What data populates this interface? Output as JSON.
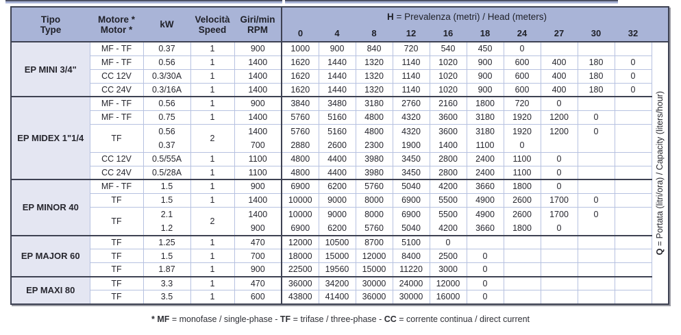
{
  "colors": {
    "header_blue": "#a9b4d7",
    "type_column_lavender": "#e4e6f2",
    "grid_light_blue": "#b6c1e0",
    "dark_border": "#3d4152"
  },
  "table": {
    "columns": {
      "tipo": [
        "Tipo",
        "Type"
      ],
      "motore": [
        "Motore *",
        "Motor *"
      ],
      "kw": "kW",
      "velocita": [
        "Velocità",
        "Speed"
      ],
      "giri": [
        "Giri/min",
        "RPM"
      ]
    },
    "head_group": {
      "symbol": "H",
      "label": " = Prevalenza (metri) / Head (meters)",
      "values": [
        "0",
        "4",
        "8",
        "12",
        "16",
        "18",
        "24",
        "27",
        "30",
        "32"
      ]
    },
    "side_label": {
      "symbol": "Q",
      "label": " = Portata (litri/ora) / Capacity (liters/hour)"
    },
    "sections": [
      {
        "name": "EP MINI 3/4\"",
        "rows": [
          {
            "motor": "MF - TF",
            "kw": [
              "0.37"
            ],
            "speed": "1",
            "rpm": [
              "900"
            ],
            "lines": [
              [
                "1000",
                "900",
                "840",
                "720",
                "540",
                "450",
                "0",
                "",
                "",
                ""
              ]
            ]
          },
          {
            "motor": "MF - TF",
            "kw": [
              "0.56"
            ],
            "speed": "1",
            "rpm": [
              "1400"
            ],
            "lines": [
              [
                "1620",
                "1440",
                "1320",
                "1140",
                "1020",
                "900",
                "600",
                "400",
                "180",
                "0"
              ]
            ]
          },
          {
            "motor": "CC 12V",
            "kw": [
              "0.3/30A"
            ],
            "speed": "1",
            "rpm": [
              "1400"
            ],
            "lines": [
              [
                "1620",
                "1440",
                "1320",
                "1140",
                "1020",
                "900",
                "600",
                "400",
                "180",
                "0"
              ]
            ]
          },
          {
            "motor": "CC 24V",
            "kw": [
              "0.3/16A"
            ],
            "speed": "1",
            "rpm": [
              "1400"
            ],
            "lines": [
              [
                "1620",
                "1440",
                "1320",
                "1140",
                "1020",
                "900",
                "600",
                "400",
                "180",
                "0"
              ]
            ]
          }
        ]
      },
      {
        "name": "EP MIDEX 1\"1/4",
        "rows": [
          {
            "motor": "MF - TF",
            "kw": [
              "0.56"
            ],
            "speed": "1",
            "rpm": [
              "900"
            ],
            "lines": [
              [
                "3840",
                "3480",
                "3180",
                "2760",
                "2160",
                "1800",
                "720",
                "0",
                "",
                ""
              ]
            ]
          },
          {
            "motor": "MF - TF",
            "kw": [
              "0.75"
            ],
            "speed": "1",
            "rpm": [
              "1400"
            ],
            "lines": [
              [
                "5760",
                "5160",
                "4800",
                "4320",
                "3600",
                "3180",
                "1920",
                "1200",
                "0",
                ""
              ]
            ]
          },
          {
            "motor": "TF",
            "kw": [
              "0.56",
              "0.37"
            ],
            "speed": "2",
            "rpm": [
              "1400",
              "700"
            ],
            "lines": [
              [
                "5760",
                "5160",
                "4800",
                "4320",
                "3600",
                "3180",
                "1920",
                "1200",
                "0",
                ""
              ],
              [
                "2880",
                "2600",
                "2300",
                "1900",
                "1400",
                "1100",
                "0",
                "",
                "",
                ""
              ]
            ]
          },
          {
            "motor": "CC 12V",
            "kw": [
              "0.5/55A"
            ],
            "speed": "1",
            "rpm": [
              "1100"
            ],
            "lines": [
              [
                "4800",
                "4400",
                "3980",
                "3450",
                "2800",
                "2400",
                "1100",
                "0",
                "",
                ""
              ]
            ]
          },
          {
            "motor": "CC 24V",
            "kw": [
              "0.5/28A"
            ],
            "speed": "1",
            "rpm": [
              "1100"
            ],
            "lines": [
              [
                "4800",
                "4400",
                "3980",
                "3450",
                "2800",
                "2400",
                "1100",
                "0",
                "",
                ""
              ]
            ]
          }
        ]
      },
      {
        "name": "EP MINOR 40",
        "rows": [
          {
            "motor": "MF - TF",
            "kw": [
              "1.5"
            ],
            "speed": "1",
            "rpm": [
              "900"
            ],
            "lines": [
              [
                "6900",
                "6200",
                "5760",
                "5040",
                "4200",
                "3660",
                "1800",
                "0",
                "",
                ""
              ]
            ]
          },
          {
            "motor": "TF",
            "kw": [
              "1.5"
            ],
            "speed": "1",
            "rpm": [
              "1400"
            ],
            "lines": [
              [
                "10000",
                "9000",
                "8000",
                "6900",
                "5500",
                "4900",
                "2600",
                "1700",
                "0",
                ""
              ]
            ]
          },
          {
            "motor": "TF",
            "kw": [
              "2.1",
              "1.2"
            ],
            "speed": "2",
            "rpm": [
              "1400",
              "900"
            ],
            "lines": [
              [
                "10000",
                "9000",
                "8000",
                "6900",
                "5500",
                "4900",
                "2600",
                "1700",
                "0",
                ""
              ],
              [
                "6900",
                "6200",
                "5760",
                "5040",
                "4200",
                "3660",
                "1800",
                "0",
                "",
                ""
              ]
            ]
          }
        ]
      },
      {
        "name": "EP MAJOR 60",
        "rows": [
          {
            "motor": "TF",
            "kw": [
              "1.25"
            ],
            "speed": "1",
            "rpm": [
              "470"
            ],
            "lines": [
              [
                "12000",
                "10500",
                "8700",
                "5100",
                "0",
                "",
                "",
                "",
                "",
                ""
              ]
            ]
          },
          {
            "motor": "TF",
            "kw": [
              "1.5"
            ],
            "speed": "1",
            "rpm": [
              "700"
            ],
            "lines": [
              [
                "18000",
                "15000",
                "12000",
                "8400",
                "2500",
                "0",
                "",
                "",
                "",
                ""
              ]
            ]
          },
          {
            "motor": "TF",
            "kw": [
              "1.87"
            ],
            "speed": "1",
            "rpm": [
              "900"
            ],
            "lines": [
              [
                "22500",
                "19560",
                "15000",
                "11220",
                "3000",
                "0",
                "",
                "",
                "",
                ""
              ]
            ]
          }
        ]
      },
      {
        "name": "EP MAXI 80",
        "rows": [
          {
            "motor": "TF",
            "kw": [
              "3.3"
            ],
            "speed": "1",
            "rpm": [
              "470"
            ],
            "lines": [
              [
                "36000",
                "34200",
                "30000",
                "24000",
                "12000",
                "0",
                "",
                "",
                "",
                ""
              ]
            ]
          },
          {
            "motor": "TF",
            "kw": [
              "3.5"
            ],
            "speed": "1",
            "rpm": [
              "600"
            ],
            "lines": [
              [
                "43800",
                "41400",
                "36000",
                "30000",
                "16000",
                "0",
                "",
                "",
                "",
                ""
              ]
            ]
          }
        ]
      }
    ],
    "footnote": [
      {
        "text": "* MF ",
        "bold": true
      },
      {
        "text": "= monofase / single-phase - ",
        "bold": false
      },
      {
        "text": "TF ",
        "bold": true
      },
      {
        "text": "= trifase / three-phase - ",
        "bold": false
      },
      {
        "text": "CC ",
        "bold": true
      },
      {
        "text": "= corrente continua / direct current",
        "bold": false
      }
    ]
  }
}
